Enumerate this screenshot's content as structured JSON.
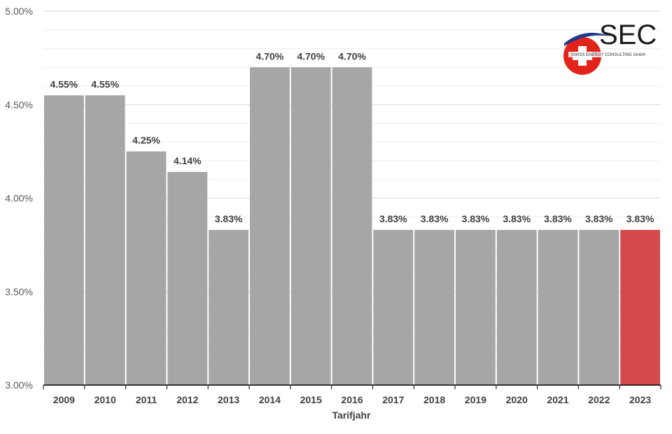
{
  "chart_data": {
    "type": "bar",
    "categories": [
      "2009",
      "2010",
      "2011",
      "2012",
      "2013",
      "2014",
      "2015",
      "2016",
      "2017",
      "2018",
      "2019",
      "2020",
      "2021",
      "2022",
      "2023"
    ],
    "values": [
      4.55,
      4.55,
      4.25,
      4.14,
      3.83,
      4.7,
      4.7,
      4.7,
      3.83,
      3.83,
      3.83,
      3.83,
      3.83,
      3.83,
      3.83
    ],
    "data_labels": [
      "4.55%",
      "4.55%",
      "4.25%",
      "4.14%",
      "3.83%",
      "4.70%",
      "4.70%",
      "4.70%",
      "3.83%",
      "3.83%",
      "3.83%",
      "3.83%",
      "3.83%",
      "3.83%",
      "3.83%"
    ],
    "highlight_index": 14,
    "xlabel": "Tarifjahr",
    "ylabel": "",
    "ylim": [
      3.0,
      5.0
    ],
    "yticks": [
      3.0,
      3.5,
      4.0,
      4.5,
      5.0
    ],
    "ytick_labels": [
      "3.00%",
      "3.50%",
      "4.00%",
      "4.50%",
      "5.00%"
    ],
    "grid": true,
    "colors": {
      "bar": "#a6a6a6",
      "highlight": "#d44a4a",
      "grid_major": "#d9d9d9",
      "grid_minor": "#eeeeee"
    }
  },
  "logo": {
    "text": "SEC",
    "subtitle": "SWISS ENERGY CONSULTING GmbH",
    "colors": {
      "red": "#e2231a",
      "navy": "#1f3a8a"
    }
  }
}
